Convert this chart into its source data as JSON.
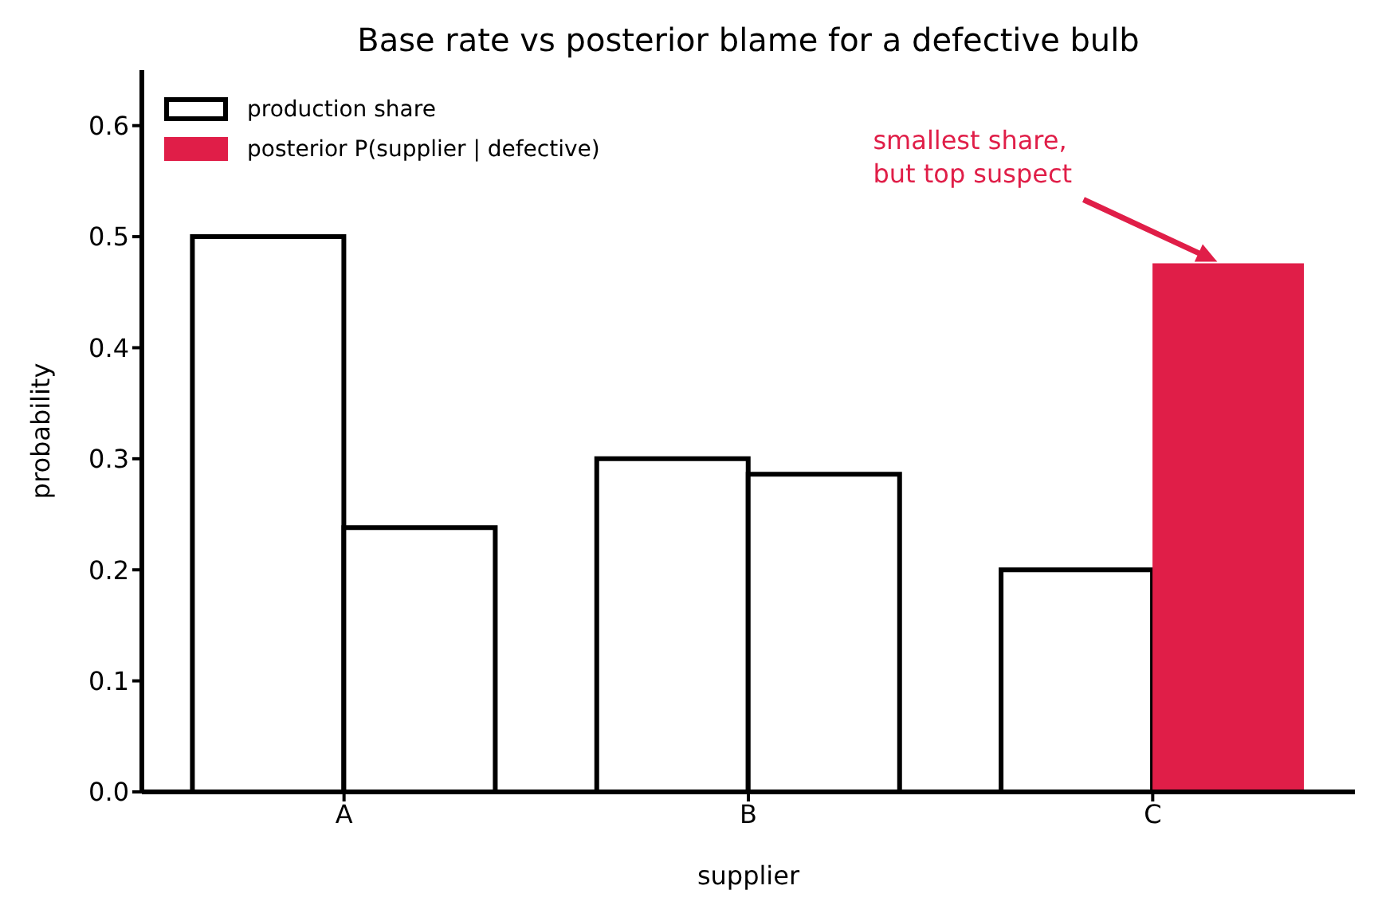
{
  "chart_data": {
    "type": "bar",
    "title": "Base rate vs posterior blame for a defective bulb",
    "xlabel": "supplier",
    "ylabel": "probability",
    "categories": [
      "A",
      "B",
      "C"
    ],
    "series": [
      {
        "name": "production share",
        "color": "#ffffff",
        "values": [
          0.5,
          0.3,
          0.2
        ]
      },
      {
        "name": "posterior P(supplier | defective)",
        "color": "#e01e48",
        "colors": [
          "#ffffff",
          "#ffffff",
          "#e01e48"
        ],
        "values": [
          0.238,
          0.286,
          0.476
        ]
      }
    ],
    "ylim": [
      0,
      0.65
    ],
    "yticks": [
      {
        "value": 0,
        "label": "0.0"
      },
      0.1,
      0.2,
      0.3,
      0.4,
      0.5,
      0.6
    ],
    "legend": "top left",
    "annotations": [
      "smallest share,\nbut top suspect"
    ]
  }
}
